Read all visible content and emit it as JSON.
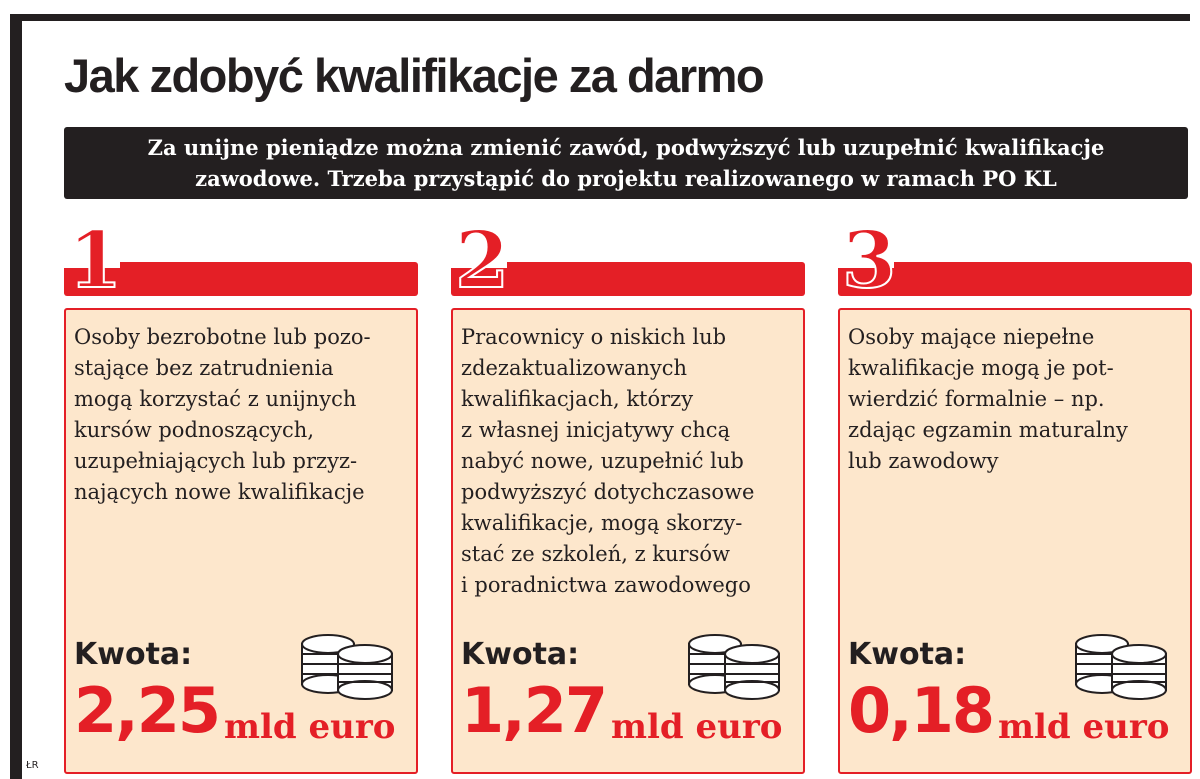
{
  "header": {
    "title": "Jak zdobyć kwalifikacje za darmo",
    "subtitle_line1": "Za unijne pieniądze można zmienić zawód, podwyższyć lub uzupełnić kwalifikacje",
    "subtitle_line2": "zawodowe. Trzeba przystąpić do projektu realizowanego w ramach PO KL"
  },
  "cards": [
    {
      "number": "1",
      "description": "Osoby bezrobotne lub pozo-\nstające bez zatrudnienia\nmogą korzystać z unijnych\nkursów podnoszących,\nuzupełniających lub przyz-\nnających nowe kwalifikacje",
      "amount_label": "Kwota:",
      "amount_value": "2,25",
      "amount_unit": "mld euro",
      "icon": "coins-icon"
    },
    {
      "number": "2",
      "description": "Pracownicy o niskich lub\nzdezaktualizowanych\nkwalifikacjach, którzy\nz własnej inicjatywy chcą\nnabyć nowe, uzupełnić lub\npodwyższyć dotychczasowe\nkwalifikacje,  mogą skorzy-\nstać ze szkoleń, z kursów\ni poradnictwa zawodowego",
      "amount_label": "Kwota:",
      "amount_value": "1,27",
      "amount_unit": "mld euro",
      "icon": "coins-icon"
    },
    {
      "number": "3",
      "description": "Osoby mające niepełne\nkwalifikacje mogą je pot-\nwierdzić formalnie – np.\nzdając egzamin maturalny\nlub zawodowy",
      "amount_label": "Kwota:",
      "amount_value": "0,18",
      "amount_unit": "mld euro",
      "icon": "coins-icon"
    }
  ],
  "credit": "ŁR",
  "colors": {
    "accent_red": "#e41f26",
    "panel_bg": "#fde7cc",
    "dark": "#231f20"
  }
}
